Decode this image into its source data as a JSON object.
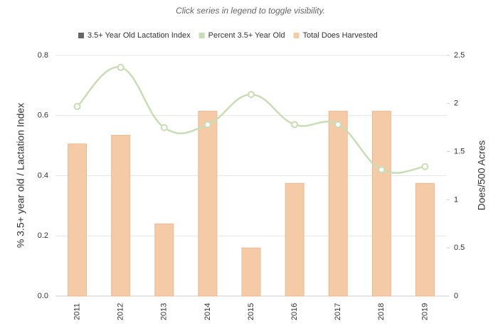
{
  "chart_data": {
    "type": "bar-line",
    "subtitle": "Click series in legend to toggle visibility.",
    "categories": [
      "2011",
      "2012",
      "2013",
      "2014",
      "2015",
      "2016",
      "2017",
      "2018",
      "2019"
    ],
    "series": [
      {
        "name": "3.5+ Year Old Lactation Index",
        "type": "line",
        "color": "#666666",
        "hidden": true,
        "values": [
          null,
          null,
          null,
          null,
          null,
          null,
          null,
          null,
          null
        ]
      },
      {
        "name": "Percent 3.5+ Year Old",
        "type": "line",
        "color": "#c9dcb6",
        "values": [
          0.63,
          0.76,
          0.56,
          0.57,
          0.67,
          0.57,
          0.57,
          0.42,
          0.43
        ]
      },
      {
        "name": "Total Does Harvested",
        "type": "bar",
        "color": "#f5cba7",
        "axis": "y2",
        "values": [
          1.58,
          1.67,
          0.75,
          1.92,
          0.5,
          1.17,
          1.92,
          1.92,
          1.17
        ]
      }
    ],
    "ylabel": "% 3.5+ year old / Lactation Index",
    "y2label": "Does/500 Acres",
    "ylim": [
      0,
      0.8
    ],
    "yticks": [
      {
        "value": 0,
        "label": "0.0"
      },
      0.2,
      0.4,
      0.6,
      0.8
    ],
    "y2lim": [
      0,
      2.5
    ],
    "y2ticks": [
      0,
      0.5,
      1,
      1.5,
      2,
      2.5
    ],
    "grid": true
  }
}
